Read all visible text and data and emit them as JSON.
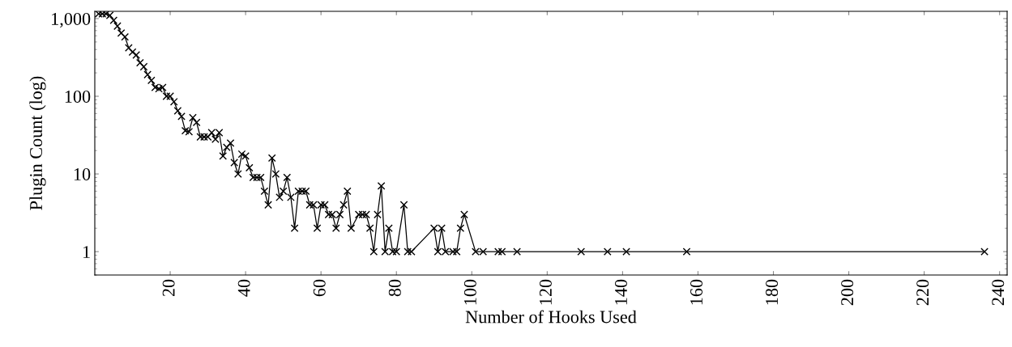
{
  "chart_data": {
    "type": "line",
    "xlabel": "Number of Hooks Used",
    "ylabel": "Plugin Count (log)",
    "log": "y",
    "marker": "cross",
    "line_style": "solid",
    "grid": false,
    "x": [
      1,
      2,
      3,
      4,
      5,
      6,
      7,
      8,
      9,
      10,
      11,
      12,
      13,
      14,
      15,
      16,
      17,
      18,
      19,
      20,
      21,
      22,
      23,
      24,
      25,
      26,
      27,
      28,
      29,
      30,
      31,
      32,
      33,
      34,
      35,
      36,
      37,
      38,
      39,
      40,
      41,
      42,
      43,
      44,
      45,
      46,
      47,
      48,
      49,
      50,
      51,
      52,
      53,
      54,
      55,
      56,
      57,
      58,
      59,
      60,
      61,
      62,
      63,
      64,
      65,
      66,
      67,
      68,
      70,
      71,
      72,
      73,
      74,
      75,
      76,
      77,
      78,
      79,
      80,
      82,
      83,
      84,
      90,
      91,
      92,
      93,
      95,
      96,
      97,
      98,
      101,
      103,
      107,
      108,
      112,
      129,
      136,
      141,
      157,
      236
    ],
    "series": [
      {
        "color": "#000000",
        "values": [
          1150,
          1150,
          1150,
          1100,
          950,
          800,
          650,
          580,
          420,
          370,
          340,
          270,
          240,
          190,
          160,
          130,
          125,
          130,
          100,
          100,
          85,
          65,
          55,
          36,
          35,
          53,
          46,
          30,
          30,
          30,
          34,
          28,
          34,
          17,
          22,
          25,
          14,
          10,
          18,
          17,
          12,
          9,
          9,
          9,
          6,
          4,
          16,
          10,
          5,
          6,
          9,
          5,
          2,
          6,
          6,
          6,
          4,
          4,
          2,
          4,
          4,
          3,
          3,
          2,
          3,
          4,
          6,
          2,
          3,
          3,
          3,
          2,
          1,
          3,
          7,
          1,
          2,
          1,
          1,
          4,
          1,
          1,
          2,
          1,
          2,
          1,
          1,
          1,
          2,
          3,
          1,
          1,
          1,
          1,
          1,
          1,
          1,
          1,
          1,
          1
        ]
      }
    ],
    "xlim": [
      0,
      242
    ],
    "xticks": [
      20,
      40,
      60,
      80,
      100,
      120,
      140,
      160,
      180,
      200,
      220,
      240
    ],
    "ylim": [
      0.5,
      1240
    ],
    "yticks": [
      1,
      10,
      100,
      {
        "value": 1000,
        "label": "1,000"
      }
    ]
  }
}
